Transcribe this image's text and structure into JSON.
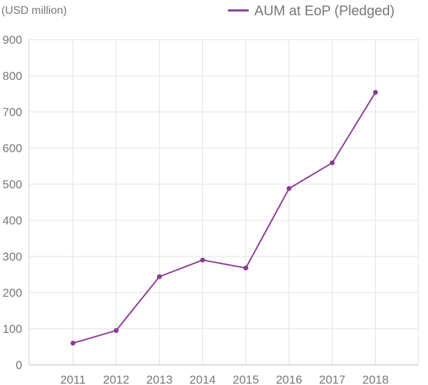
{
  "chart_data": {
    "type": "line",
    "unit_label": "(USD million)",
    "categories": [
      "2011",
      "2012",
      "2013",
      "2014",
      "2015",
      "2016",
      "2017",
      "2018"
    ],
    "series": [
      {
        "name": "AUM at EoP (Pledged)",
        "color": "#8b3a96",
        "values": [
          60,
          95,
          244,
          290,
          268,
          488,
          559,
          754
        ]
      }
    ],
    "ylim": [
      0,
      900
    ],
    "yticks": [
      0,
      100,
      200,
      300,
      400,
      500,
      600,
      700,
      800,
      900
    ],
    "grid": true,
    "legend_position": "top-right"
  }
}
